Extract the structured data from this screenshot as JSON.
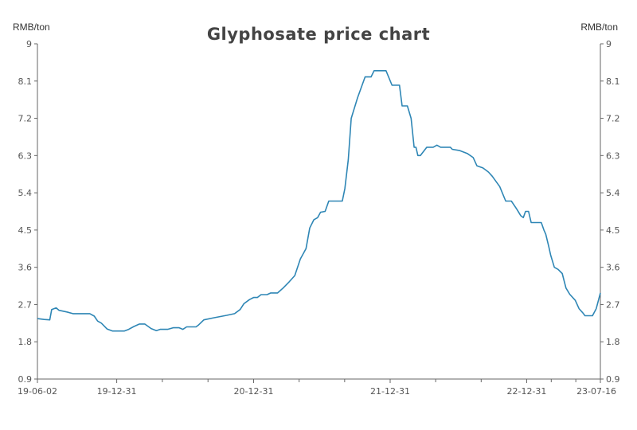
{
  "chart_data": {
    "type": "line",
    "title": "Glyphosate price chart",
    "y_unit_left": "RMB/ton",
    "y_unit_right": "RMB/ton",
    "ylim": [
      0.9,
      9
    ],
    "yticks": [
      "0.9",
      "1.8",
      "2.7",
      "3.6",
      "4.5",
      "5.4",
      "6.3",
      "7.2",
      "8.1",
      "9"
    ],
    "xticks": [
      {
        "label": "19-06-02",
        "date": "2019-06-02"
      },
      {
        "label": "19-12-31",
        "date": "2019-12-31"
      },
      {
        "label": "20-12-31",
        "date": "2020-12-31"
      },
      {
        "label": "21-12-31",
        "date": "2021-12-31"
      },
      {
        "label": "22-12-31",
        "date": "2022-12-31"
      },
      {
        "label": "23-07-16",
        "date": "2023-07-16"
      }
    ],
    "grid": false,
    "line_color": "#2e86b5",
    "series": [
      {
        "points": [
          [
            "2019-06-02",
            2.36
          ],
          [
            "2019-06-20",
            2.34
          ],
          [
            "2019-07-05",
            2.33
          ],
          [
            "2019-07-10",
            2.58
          ],
          [
            "2019-07-22",
            2.62
          ],
          [
            "2019-07-30",
            2.56
          ],
          [
            "2019-08-20",
            2.52
          ],
          [
            "2019-09-05",
            2.48
          ],
          [
            "2019-10-20",
            2.48
          ],
          [
            "2019-11-01",
            2.42
          ],
          [
            "2019-11-10",
            2.3
          ],
          [
            "2019-11-20",
            2.25
          ],
          [
            "2019-12-05",
            2.11
          ],
          [
            "2019-12-20",
            2.06
          ],
          [
            "2020-01-20",
            2.06
          ],
          [
            "2020-02-01",
            2.1
          ],
          [
            "2020-02-15",
            2.17
          ],
          [
            "2020-03-01",
            2.23
          ],
          [
            "2020-03-15",
            2.23
          ],
          [
            "2020-04-01",
            2.12
          ],
          [
            "2020-04-15",
            2.07
          ],
          [
            "2020-04-25",
            2.1
          ],
          [
            "2020-05-15",
            2.1
          ],
          [
            "2020-05-30",
            2.14
          ],
          [
            "2020-06-15",
            2.14
          ],
          [
            "2020-06-25",
            2.1
          ],
          [
            "2020-07-05",
            2.16
          ],
          [
            "2020-07-30",
            2.16
          ],
          [
            "2020-08-05",
            2.2
          ],
          [
            "2020-08-20",
            2.33
          ],
          [
            "2020-09-15",
            2.38
          ],
          [
            "2020-10-20",
            2.44
          ],
          [
            "2020-11-10",
            2.48
          ],
          [
            "2020-11-25",
            2.58
          ],
          [
            "2020-12-05",
            2.72
          ],
          [
            "2020-12-20",
            2.82
          ],
          [
            "2020-12-31",
            2.87
          ],
          [
            "2021-01-10",
            2.87
          ],
          [
            "2021-01-20",
            2.94
          ],
          [
            "2021-02-05",
            2.94
          ],
          [
            "2021-02-15",
            2.98
          ],
          [
            "2021-03-05",
            2.98
          ],
          [
            "2021-03-20",
            3.1
          ],
          [
            "2021-04-05",
            3.25
          ],
          [
            "2021-04-20",
            3.4
          ],
          [
            "2021-05-05",
            3.8
          ],
          [
            "2021-05-20",
            4.05
          ],
          [
            "2021-05-30",
            4.55
          ],
          [
            "2021-06-10",
            4.75
          ],
          [
            "2021-06-20",
            4.8
          ],
          [
            "2021-06-28",
            4.93
          ],
          [
            "2021-07-10",
            4.95
          ],
          [
            "2021-07-20",
            5.2
          ],
          [
            "2021-08-25",
            5.2
          ],
          [
            "2021-09-01",
            5.5
          ],
          [
            "2021-09-10",
            6.2
          ],
          [
            "2021-09-18",
            7.2
          ],
          [
            "2021-10-05",
            7.7
          ],
          [
            "2021-10-25",
            8.2
          ],
          [
            "2021-11-10",
            8.2
          ],
          [
            "2021-11-18",
            8.35
          ],
          [
            "2021-12-20",
            8.35
          ],
          [
            "2022-01-05",
            8.0
          ],
          [
            "2022-01-25",
            8.0
          ],
          [
            "2022-02-01",
            7.5
          ],
          [
            "2022-02-15",
            7.5
          ],
          [
            "2022-02-25",
            7.2
          ],
          [
            "2022-03-05",
            6.5
          ],
          [
            "2022-03-10",
            6.5
          ],
          [
            "2022-03-15",
            6.3
          ],
          [
            "2022-03-22",
            6.3
          ],
          [
            "2022-04-08",
            6.5
          ],
          [
            "2022-04-25",
            6.5
          ],
          [
            "2022-05-05",
            6.55
          ],
          [
            "2022-05-15",
            6.5
          ],
          [
            "2022-06-10",
            6.5
          ],
          [
            "2022-06-15",
            6.45
          ],
          [
            "2022-07-05",
            6.42
          ],
          [
            "2022-07-25",
            6.35
          ],
          [
            "2022-08-10",
            6.25
          ],
          [
            "2022-08-20",
            6.05
          ],
          [
            "2022-09-05",
            6.0
          ],
          [
            "2022-09-20",
            5.9
          ],
          [
            "2022-09-30",
            5.8
          ],
          [
            "2022-10-20",
            5.55
          ],
          [
            "2022-11-05",
            5.2
          ],
          [
            "2022-11-20",
            5.2
          ],
          [
            "2022-12-05",
            5.0
          ],
          [
            "2022-12-15",
            4.85
          ],
          [
            "2022-12-22",
            4.8
          ],
          [
            "2022-12-28",
            4.95
          ],
          [
            "2023-01-05",
            4.95
          ],
          [
            "2023-01-12",
            4.68
          ],
          [
            "2023-02-08",
            4.68
          ],
          [
            "2023-02-15",
            4.5
          ],
          [
            "2023-02-20",
            4.4
          ],
          [
            "2023-02-28",
            4.1
          ],
          [
            "2023-03-05",
            3.9
          ],
          [
            "2023-03-15",
            3.6
          ],
          [
            "2023-03-25",
            3.55
          ],
          [
            "2023-04-05",
            3.45
          ],
          [
            "2023-04-15",
            3.1
          ],
          [
            "2023-04-25",
            2.95
          ],
          [
            "2023-05-10",
            2.8
          ],
          [
            "2023-05-20",
            2.6
          ],
          [
            "2023-05-30",
            2.5
          ],
          [
            "2023-06-05",
            2.43
          ],
          [
            "2023-06-25",
            2.43
          ],
          [
            "2023-07-05",
            2.6
          ],
          [
            "2023-07-16",
            2.98
          ]
        ]
      }
    ]
  }
}
